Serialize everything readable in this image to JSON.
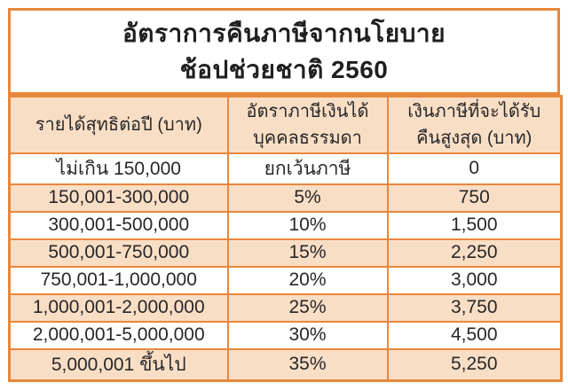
{
  "title": {
    "line1": "อัตราการคืนภาษีจากนโยบาย",
    "line2": "ช้อปช่วยชาติ 2560"
  },
  "table_header": {
    "col1": {
      "line1": "รายได้สุทธิต่อปี (บาท)",
      "line2": ""
    },
    "col2": {
      "line1": "อัตราภาษีเงินได้",
      "line2": "บุคคลธรรมดา"
    },
    "col3": {
      "line1": "เงินภาษีที่จะได้รับ",
      "line2": "คืนสูงสุด (บาท)"
    }
  },
  "chart_data": {
    "type": "table",
    "title": "อัตราการคืนภาษีจากนโยบาย ช้อปช่วยชาติ 2560",
    "columns": [
      "รายได้สุทธิต่อปี (บาท)",
      "อัตราภาษีเงินได้บุคคลธรรมดา",
      "เงินภาษีที่จะได้รับคืนสูงสุด (บาท)"
    ],
    "rows": [
      [
        "ไม่เกิน 150,000",
        "ยกเว้นภาษี",
        "0"
      ],
      [
        "150,001-300,000",
        "5%",
        "750"
      ],
      [
        "300,001-500,000",
        "10%",
        "1,500"
      ],
      [
        "500,001-750,000",
        "15%",
        "2,250"
      ],
      [
        "750,001-1,000,000",
        "20%",
        "3,000"
      ],
      [
        "1,000,001-2,000,000",
        "25%",
        "3,750"
      ],
      [
        "2,000,001-5,000,000",
        "30%",
        "4,500"
      ],
      [
        "5,000,001 ขึ้นไป",
        "35%",
        "5,250"
      ]
    ]
  },
  "colors": {
    "border_orange": "#e8873c",
    "fill_peach": "#f9dec6",
    "text_dark": "#272727",
    "background": "#ffffff"
  }
}
